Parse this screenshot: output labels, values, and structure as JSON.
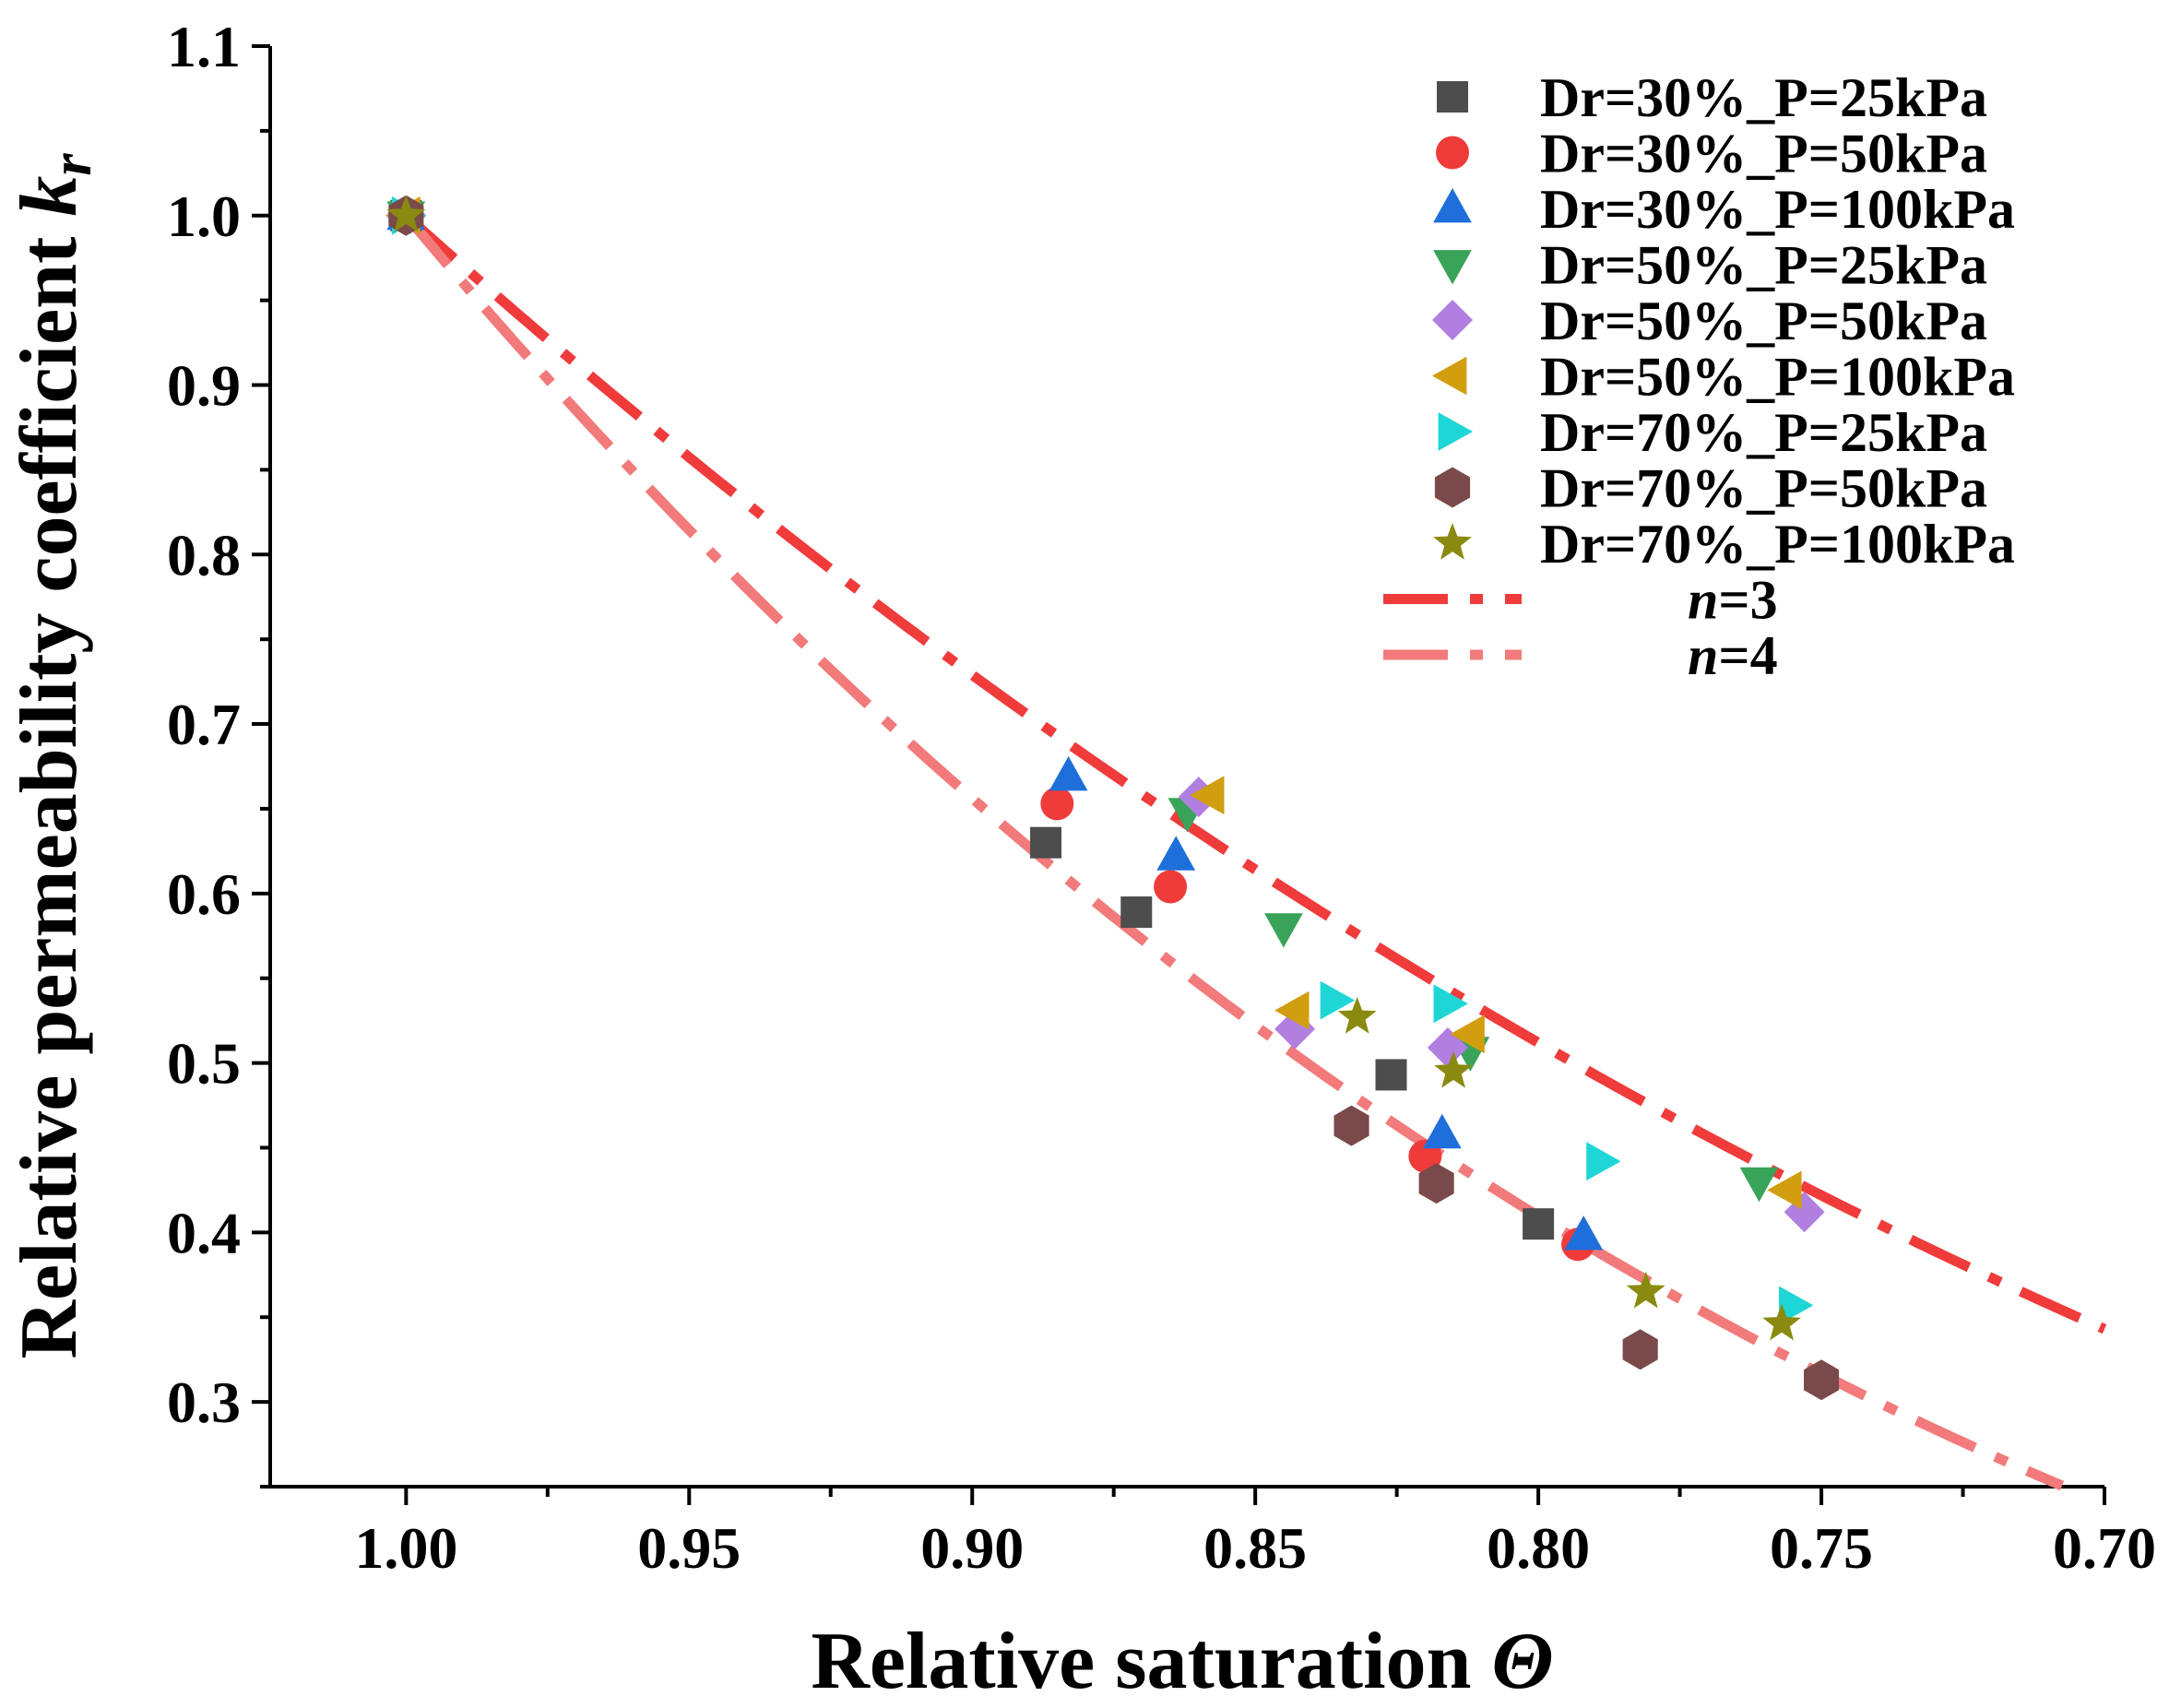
{
  "chart_data": {
    "type": "scatter",
    "xlabel": "Relative saturation",
    "xlabel_symbol": "Θ",
    "ylabel": "Relative permeability coefficient",
    "ylabel_symbol_base": "k",
    "ylabel_symbol_sub": "r",
    "xlim": [
      1.024,
      0.7
    ],
    "ylim": [
      0.25,
      1.1
    ],
    "x_reversed": true,
    "x_ticks": [
      1.0,
      0.95,
      0.9,
      0.85,
      0.8,
      0.75,
      0.7
    ],
    "x_tick_labels": [
      "1.00",
      "0.95",
      "0.90",
      "0.85",
      "0.80",
      "0.75",
      "0.70"
    ],
    "y_ticks": [
      0.3,
      0.4,
      0.5,
      0.6,
      0.7,
      0.8,
      0.9,
      1.0,
      1.1
    ],
    "y_tick_labels": [
      "0.3",
      "0.4",
      "0.5",
      "0.6",
      "0.7",
      "0.8",
      "0.9",
      "1.0",
      "1.1"
    ],
    "legend_position": "top-right",
    "series": [
      {
        "name": "Dr=30%_P=25kPa",
        "marker": "square",
        "color": "#4d4d4d",
        "points": [
          [
            1.0,
            1.0
          ],
          [
            0.887,
            0.63
          ],
          [
            0.871,
            0.589
          ],
          [
            0.826,
            0.493
          ],
          [
            0.8,
            0.405
          ]
        ]
      },
      {
        "name": "Dr=30%_P=50kPa",
        "marker": "circle",
        "color": "#f03b3b",
        "points": [
          [
            1.0,
            1.0
          ],
          [
            0.885,
            0.653
          ],
          [
            0.865,
            0.604
          ],
          [
            0.82,
            0.445
          ],
          [
            0.793,
            0.393
          ]
        ]
      },
      {
        "name": "Dr=30%_P=100kPa",
        "marker": "triangle-up",
        "color": "#1f6fdb",
        "points": [
          [
            1.0,
            1.0
          ],
          [
            0.883,
            0.669
          ],
          [
            0.864,
            0.622
          ],
          [
            0.817,
            0.458
          ],
          [
            0.792,
            0.398
          ]
        ]
      },
      {
        "name": "Dr=50%_P=25kPa",
        "marker": "triangle-down",
        "color": "#3aa35a",
        "points": [
          [
            1.0,
            1.0
          ],
          [
            0.862,
            0.648
          ],
          [
            0.845,
            0.58
          ],
          [
            0.812,
            0.507
          ],
          [
            0.761,
            0.43
          ]
        ]
      },
      {
        "name": "Dr=50%_P=50kPa",
        "marker": "diamond",
        "color": "#b07fe0",
        "points": [
          [
            1.0,
            1.0
          ],
          [
            0.86,
            0.657
          ],
          [
            0.843,
            0.52
          ],
          [
            0.816,
            0.509
          ],
          [
            0.753,
            0.412
          ]
        ]
      },
      {
        "name": "Dr=50%_P=100kPa",
        "marker": "triangle-left",
        "color": "#d19e10",
        "points": [
          [
            1.0,
            1.0
          ],
          [
            0.858,
            0.658
          ],
          [
            0.843,
            0.531
          ],
          [
            0.812,
            0.517
          ],
          [
            0.756,
            0.425
          ]
        ]
      },
      {
        "name": "Dr=70%_P=25kPa",
        "marker": "triangle-right",
        "color": "#1fd6d6",
        "points": [
          [
            1.0,
            1.0
          ],
          [
            0.836,
            0.537
          ],
          [
            0.816,
            0.535
          ],
          [
            0.789,
            0.442
          ],
          [
            0.755,
            0.357
          ]
        ]
      },
      {
        "name": "Dr=70%_P=50kPa",
        "marker": "hexagon",
        "color": "#7a4a4a",
        "points": [
          [
            1.0,
            1.0
          ],
          [
            0.833,
            0.463
          ],
          [
            0.818,
            0.429
          ],
          [
            0.782,
            0.331
          ],
          [
            0.75,
            0.313
          ]
        ]
      },
      {
        "name": "Dr=70%_P=100kPa",
        "marker": "star",
        "color": "#8a8a10",
        "points": [
          [
            1.0,
            1.0
          ],
          [
            0.832,
            0.527
          ],
          [
            0.815,
            0.495
          ],
          [
            0.781,
            0.365
          ],
          [
            0.757,
            0.346
          ]
        ]
      }
    ],
    "curves": [
      {
        "name_prefix": "n",
        "name_value": "=3",
        "n": 3,
        "color": "#f03b3b",
        "style": "dash-dot"
      },
      {
        "name_prefix": "n",
        "name_value": "=4",
        "n": 4,
        "color": "#f27a7a",
        "style": "dash-dot"
      }
    ]
  }
}
